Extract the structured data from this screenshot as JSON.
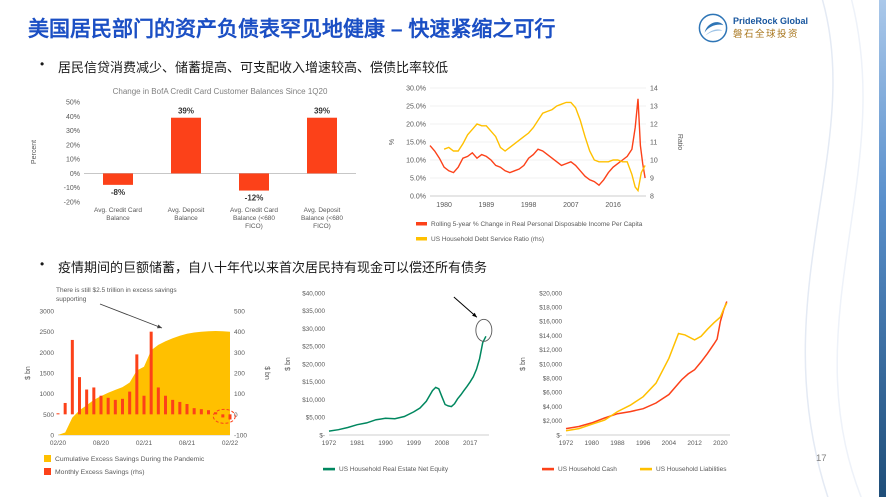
{
  "slide": {
    "title": "美国居民部门的资产负债表罕见地健康 – 快速紧缩之可行",
    "bullet_marker": "•",
    "bullet1": "居民信贷消费减少、储蓄提高、可支配收入增速较高、偿债比率较低",
    "bullet2": "疫情期间的巨额储蓄，自八十年代以来首次居民持有现金可以偿还所有债务",
    "page_number": "17",
    "logo": {
      "line1": "PrideRock Global",
      "line2": "磐石全球投资"
    }
  },
  "colors": {
    "title_blue": "#1b4fc4",
    "red": "#fc4119",
    "yellow": "#ffc000",
    "green": "#00875f",
    "axis_gray": "#595959"
  },
  "chart_data": [
    {
      "id": "bofa-balances",
      "type": "bar",
      "title": "Change in BofA Credit Card Customer Balances Since 1Q20",
      "ylabel": "Percent",
      "ylim": [
        -20,
        50
      ],
      "ytick_labels": [
        "50%",
        "40%",
        "30%",
        "20%",
        "10%",
        "0%",
        "-10%",
        "-20%"
      ],
      "categories": [
        [
          "Avg. Credit Card",
          "Balance"
        ],
        [
          "Avg. Deposit",
          "Balance"
        ],
        [
          "Avg. Credit Card",
          "Balance (<680",
          "FICO)"
        ],
        [
          "Avg. Deposit",
          "Balance (<680",
          "FICO)"
        ]
      ],
      "values": [
        -8,
        39,
        -12,
        39
      ],
      "value_labels": [
        "-8%",
        "39%",
        "-12%",
        "39%"
      ],
      "bar_color": "#fc4119"
    },
    {
      "id": "income-dsr",
      "type": "line-dual",
      "x_range": [
        1977,
        2023
      ],
      "xtick_values": [
        1980,
        1989,
        1998,
        2007,
        2016
      ],
      "xtick_labels": [
        "1980",
        "1989",
        "1998",
        "2007",
        "2016"
      ],
      "left_axis": {
        "label": "%",
        "min": 0,
        "max": 30,
        "tick_labels": [
          "30.0%",
          "25.0%",
          "20.0%",
          "15.0%",
          "10.0%",
          "5.0%",
          "0.0%"
        ]
      },
      "right_axis": {
        "label": "Ratio",
        "min": 8,
        "max": 14,
        "tick_labels": [
          "14",
          "13",
          "12",
          "11",
          "10",
          "9",
          "8"
        ]
      },
      "series": [
        {
          "name": "Rolling 5-year % Change in Real Personal Disposable Income Per Capita",
          "color": "#fc4119",
          "axis": "left",
          "x": [
            1977,
            1978,
            1979,
            1980,
            1981,
            1982,
            1983,
            1984,
            1985,
            1986,
            1987,
            1988,
            1989,
            1990,
            1991,
            1992,
            1993,
            1994,
            1995,
            1996,
            1997,
            1998,
            1999,
            2000,
            2001,
            2002,
            2003,
            2004,
            2005,
            2006,
            2007,
            2008,
            2009,
            2010,
            2011,
            2012,
            2013,
            2014,
            2015,
            2016,
            2017,
            2018,
            2019,
            2020,
            2020.7,
            2021.3,
            2021.8,
            2022.3,
            2022.8
          ],
          "y": [
            14,
            12.5,
            10.5,
            8,
            7,
            6.5,
            8,
            10.5,
            11,
            12,
            10.5,
            11.5,
            11,
            10,
            8.5,
            8,
            7,
            6.5,
            7,
            7.5,
            8.5,
            10.5,
            11.5,
            13,
            12.5,
            11.5,
            10.5,
            9.5,
            8.5,
            9,
            9.5,
            8.5,
            7,
            5.5,
            4.5,
            4,
            3,
            4.5,
            6.5,
            8,
            9,
            10,
            11,
            13,
            19,
            27,
            14,
            9,
            5
          ]
        },
        {
          "name": "US Household Debt Service Ratio (rhs)",
          "color": "#ffc000",
          "axis": "right",
          "x": [
            1980,
            1981,
            1982,
            1983,
            1984,
            1985,
            1986,
            1987,
            1988,
            1989,
            1990,
            1991,
            1992,
            1993,
            1994,
            1995,
            1996,
            1997,
            1998,
            1999,
            2000,
            2001,
            2002,
            2003,
            2004,
            2005,
            2006,
            2007,
            2008,
            2009,
            2010,
            2011,
            2012,
            2013,
            2014,
            2015,
            2016,
            2017,
            2018,
            2019,
            2020,
            2020.7,
            2021.3,
            2022,
            2022.8
          ],
          "y": [
            10.6,
            10.7,
            10.5,
            10.5,
            10.9,
            11.4,
            11.7,
            12.0,
            11.9,
            11.9,
            11.6,
            11.3,
            10.7,
            10.5,
            10.7,
            10.9,
            11.1,
            11.3,
            11.5,
            11.8,
            12.2,
            12.6,
            12.7,
            12.8,
            13.0,
            13.1,
            13.2,
            13.2,
            12.9,
            12.2,
            11.3,
            10.5,
            10.0,
            9.9,
            9.9,
            9.9,
            10.0,
            10.0,
            9.9,
            9.9,
            9.2,
            8.5,
            8.3,
            9.3,
            9.7
          ]
        }
      ]
    },
    {
      "id": "excess-savings",
      "type": "combo",
      "annotation_lines": [
        "There is still $2.5 trillion in excess savings",
        "supporting"
      ],
      "ylabel_left": "$ bn",
      "ylabel_right": "$ bn",
      "left_axis": {
        "min": 0,
        "max": 3000,
        "tick_labels": [
          "3000",
          "2500",
          "2000",
          "1500",
          "1000",
          "500",
          "0"
        ]
      },
      "right_axis": {
        "min": -100,
        "max": 500,
        "tick_labels": [
          "500",
          "400",
          "300",
          "200",
          "100",
          "0",
          "-100"
        ]
      },
      "xtick_labels": [
        "02/20",
        "08/20",
        "02/21",
        "08/21",
        "02/22"
      ],
      "xtick_positions": [
        0,
        6,
        12,
        18,
        24
      ],
      "area_series": {
        "name": "Cumulative Excess Savings During the Pandemic",
        "color": "#ffc000",
        "values": [
          0,
          60,
          420,
          600,
          720,
          850,
          940,
          1020,
          1090,
          1160,
          1270,
          1560,
          1650,
          2050,
          2180,
          2270,
          2340,
          2400,
          2450,
          2480,
          2500,
          2510,
          2515,
          2510,
          2500
        ]
      },
      "bar_series": {
        "name": "Monthly Excess Savings (rhs)",
        "color": "#fc4119",
        "values": [
          5,
          55,
          360,
          180,
          120,
          130,
          90,
          80,
          70,
          75,
          110,
          290,
          90,
          400,
          130,
          90,
          70,
          60,
          50,
          30,
          25,
          20,
          10,
          -15,
          -25
        ]
      }
    },
    {
      "id": "real-estate-equity",
      "type": "line",
      "ylabel": "$ bn",
      "ylim": [
        0,
        40000
      ],
      "ytick_labels": [
        "$40,000",
        "$35,000",
        "$30,000",
        "$25,000",
        "$20,000",
        "$15,000",
        "$10,000",
        "$5,000",
        "$-"
      ],
      "x_range": [
        1972,
        2023
      ],
      "xtick_values": [
        1972,
        1981,
        1990,
        1999,
        2008,
        2017
      ],
      "xtick_labels": [
        "1972",
        "1981",
        "1990",
        "1999",
        "2008",
        "2017"
      ],
      "endpoint_circle": true,
      "series": [
        {
          "name": "US Household Real Estate Net Equity",
          "color": "#00875f",
          "x": [
            1972,
            1975,
            1978,
            1981,
            1984,
            1987,
            1990,
            1993,
            1996,
            1999,
            2001,
            2003,
            2005,
            2006,
            2007,
            2008,
            2009,
            2010,
            2011,
            2012,
            2013,
            2014,
            2015,
            2016,
            2017,
            2018,
            2019,
            2020,
            2021,
            2022
          ],
          "y": [
            1100,
            1500,
            2100,
            2900,
            3400,
            4300,
            4700,
            4600,
            5200,
            6500,
            7600,
            9500,
            12500,
            13400,
            13000,
            10800,
            8600,
            8200,
            8000,
            8800,
            10200,
            11300,
            12500,
            13700,
            15000,
            16400,
            18500,
            21500,
            26000,
            27800
          ]
        }
      ]
    },
    {
      "id": "cash-vs-liabilities",
      "type": "line",
      "ylabel": "$ bn",
      "ylim": [
        0,
        20000
      ],
      "ytick_labels": [
        "$20,000",
        "$18,000",
        "$16,000",
        "$14,000",
        "$12,000",
        "$10,000",
        "$8,000",
        "$6,000",
        "$4,000",
        "$2,000",
        "$-"
      ],
      "x_range": [
        1972,
        2023
      ],
      "xtick_values": [
        1972,
        1980,
        1988,
        1996,
        2004,
        2012,
        2020
      ],
      "xtick_labels": [
        "1972",
        "1980",
        "1988",
        "1996",
        "2004",
        "2012",
        "2020"
      ],
      "endpoint_circle": false,
      "series": [
        {
          "name": "US Household Cash",
          "color": "#fc4119",
          "x": [
            1972,
            1976,
            1980,
            1984,
            1988,
            1992,
            1996,
            2000,
            2004,
            2008,
            2010,
            2012,
            2014,
            2016,
            2018,
            2019,
            2020,
            2021,
            2022
          ],
          "y": [
            900,
            1200,
            1700,
            2400,
            3000,
            3300,
            3700,
            4500,
            5700,
            7800,
            8600,
            9200,
            10300,
            11500,
            12800,
            13500,
            16000,
            17600,
            18800
          ]
        },
        {
          "name": "US Household Liabilities",
          "color": "#ffc000",
          "x": [
            1972,
            1976,
            1980,
            1984,
            1988,
            1992,
            1996,
            2000,
            2004,
            2007,
            2009,
            2012,
            2014,
            2016,
            2018,
            2020,
            2021,
            2022
          ],
          "y": [
            600,
            900,
            1500,
            2100,
            3300,
            4200,
            5400,
            7300,
            10800,
            14300,
            14100,
            13400,
            13900,
            14900,
            15800,
            16600,
            17700,
            18600
          ]
        }
      ]
    }
  ]
}
